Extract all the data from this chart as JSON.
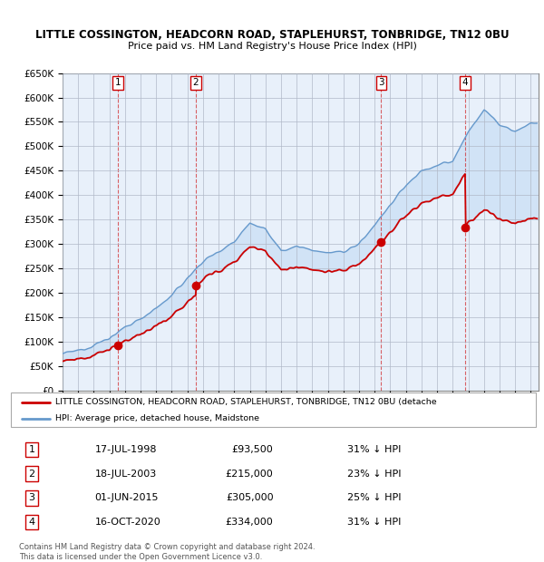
{
  "title1": "LITTLE COSSINGTON, HEADCORN ROAD, STAPLEHURST, TONBRIDGE, TN12 0BU",
  "title2": "Price paid vs. HM Land Registry's House Price Index (HPI)",
  "ylabel_ticks": [
    "£0",
    "£50K",
    "£100K",
    "£150K",
    "£200K",
    "£250K",
    "£300K",
    "£350K",
    "£400K",
    "£450K",
    "£500K",
    "£550K",
    "£600K",
    "£650K"
  ],
  "yvalues": [
    0,
    50000,
    100000,
    150000,
    200000,
    250000,
    300000,
    350000,
    400000,
    450000,
    500000,
    550000,
    600000,
    650000
  ],
  "xmin": 1995.0,
  "xmax": 2025.5,
  "ymin": 0,
  "ymax": 650000,
  "sale_dates_decimal": [
    1998.54,
    2003.54,
    2015.42,
    2020.79
  ],
  "sale_prices": [
    93500,
    215000,
    305000,
    334000
  ],
  "sale_labels": [
    "1",
    "2",
    "3",
    "4"
  ],
  "sale_dates_str": [
    "17-JUL-1998",
    "18-JUL-2003",
    "01-JUN-2015",
    "16-OCT-2020"
  ],
  "sale_prices_str": [
    "£93,500",
    "£215,000",
    "£305,000",
    "£334,000"
  ],
  "sale_hpi_str": [
    "31% ↓ HPI",
    "23% ↓ HPI",
    "25% ↓ HPI",
    "31% ↓ HPI"
  ],
  "red_line_color": "#cc0000",
  "blue_line_color": "#6699cc",
  "fill_color": "#cce0f5",
  "background_color": "#e8f0fa",
  "legend_label_red": "LITTLE COSSINGTON, HEADCORN ROAD, STAPLEHURST, TONBRIDGE, TN12 0BU (detache",
  "legend_label_blue": "HPI: Average price, detached house, Maidstone",
  "footer": "Contains HM Land Registry data © Crown copyright and database right 2024.\nThis data is licensed under the Open Government Licence v3.0.",
  "hpi_years": [
    1995,
    1996,
    1997,
    1998,
    1999,
    2000,
    2001,
    2002,
    2003,
    2004,
    2005,
    2006,
    2007,
    2008,
    2009,
    2010,
    2011,
    2012,
    2013,
    2014,
    2015,
    2016,
    2017,
    2018,
    2019,
    2020,
    2021,
    2022,
    2023,
    2024,
    2025
  ],
  "hpi_vals": [
    75000,
    82000,
    93000,
    108000,
    128000,
    148000,
    168000,
    195000,
    230000,
    265000,
    285000,
    305000,
    345000,
    330000,
    285000,
    295000,
    288000,
    280000,
    285000,
    300000,
    340000,
    380000,
    420000,
    450000,
    460000,
    470000,
    530000,
    575000,
    545000,
    530000,
    548000
  ]
}
